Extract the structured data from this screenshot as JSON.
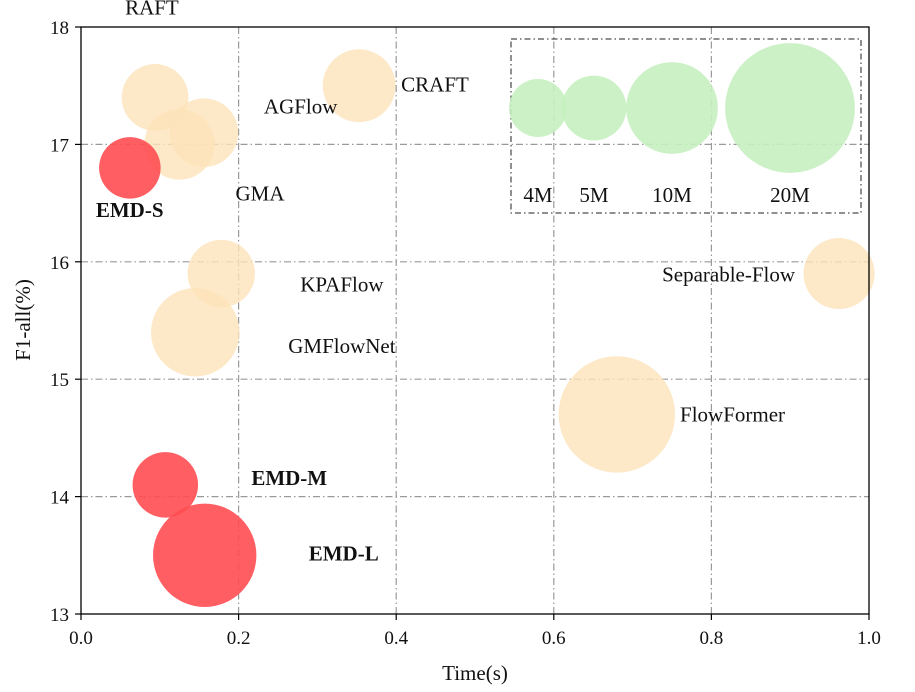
{
  "chart_data": {
    "type": "scatter",
    "title": "",
    "xlabel": "Time(s)",
    "ylabel": "F1-all(%)",
    "xlim": [
      0.0,
      1.0
    ],
    "ylim": [
      13,
      18
    ],
    "xticks": [
      0.0,
      0.2,
      0.4,
      0.6,
      0.8,
      1.0
    ],
    "xtick_labels": [
      "0.0",
      "0.2",
      "0.4",
      "0.6",
      "0.8",
      "1.0"
    ],
    "yticks": [
      13,
      14,
      15,
      16,
      17,
      18
    ],
    "ytick_labels": [
      "13",
      "14",
      "15",
      "16",
      "17",
      "18"
    ],
    "grid": true,
    "grid_style": "dash-dot",
    "colors": {
      "ours": "#ff4d52",
      "others": "#fde2b9",
      "legend": "#c6efc0"
    },
    "points": [
      {
        "label": "RAFT",
        "x": 0.094,
        "y": 17.4,
        "params_m": 5.3,
        "group": "others",
        "bold": false
      },
      {
        "label": "CRAFT",
        "x": 0.353,
        "y": 17.5,
        "params_m": 6.3,
        "group": "others",
        "bold": false
      },
      {
        "label": "AGFlow",
        "x": 0.156,
        "y": 17.1,
        "params_m": 5.6,
        "group": "others",
        "bold": false
      },
      {
        "label": "GMA",
        "x": 0.125,
        "y": 17.0,
        "params_m": 5.9,
        "group": "others",
        "bold": false
      },
      {
        "label": "EMD-S",
        "x": 0.062,
        "y": 16.8,
        "params_m": 4.5,
        "group": "ours",
        "bold": true
      },
      {
        "label": "KPAFlow",
        "x": 0.178,
        "y": 15.9,
        "params_m": 5.4,
        "group": "others",
        "bold": false
      },
      {
        "label": "Separable-Flow",
        "x": 0.962,
        "y": 15.9,
        "params_m": 6.0,
        "group": "others",
        "bold": false
      },
      {
        "label": "GMFlowNet",
        "x": 0.145,
        "y": 15.4,
        "params_m": 9.3,
        "group": "others",
        "bold": false
      },
      {
        "label": "FlowFormer",
        "x": 0.68,
        "y": 14.7,
        "params_m": 16.1,
        "group": "others",
        "bold": false
      },
      {
        "label": "EMD-M",
        "x": 0.107,
        "y": 14.1,
        "params_m": 5.1,
        "group": "ours",
        "bold": true
      },
      {
        "label": "EMD-L",
        "x": 0.157,
        "y": 13.5,
        "params_m": 12.7,
        "group": "ours",
        "bold": true
      }
    ],
    "legend": {
      "title": "",
      "placement": "top-right",
      "items": [
        {
          "label": "4M",
          "params_m": 4
        },
        {
          "label": "5M",
          "params_m": 5
        },
        {
          "label": "10M",
          "params_m": 10
        },
        {
          "label": "20M",
          "params_m": 20
        }
      ]
    }
  }
}
